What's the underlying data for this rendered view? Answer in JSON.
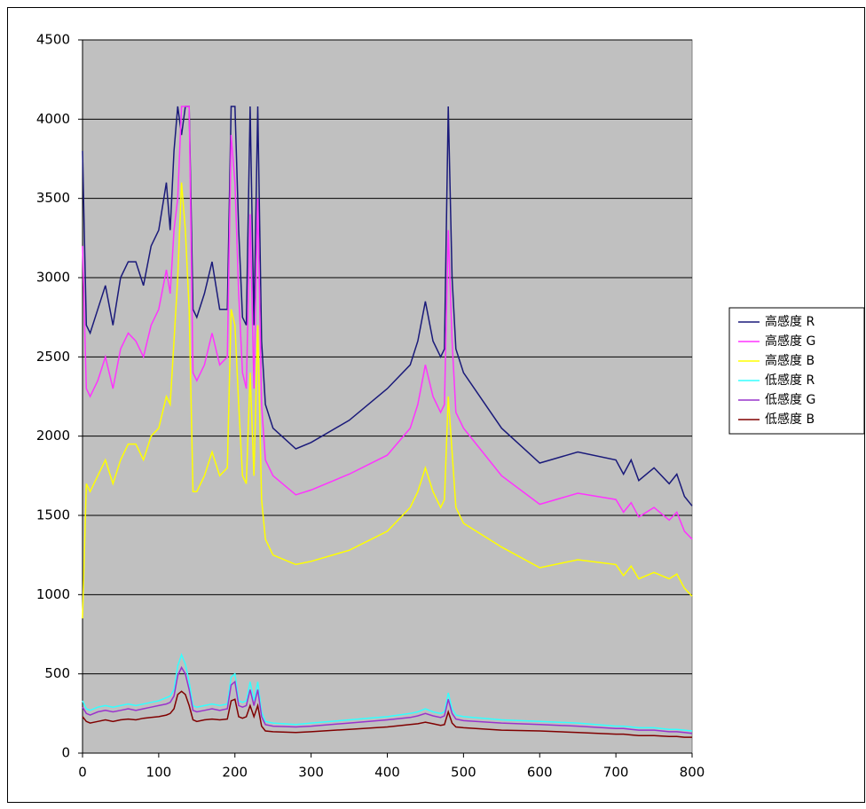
{
  "chart_data": {
    "type": "line",
    "x": [
      0,
      5,
      10,
      20,
      30,
      40,
      50,
      60,
      70,
      80,
      90,
      100,
      110,
      115,
      120,
      125,
      130,
      135,
      140,
      145,
      150,
      160,
      170,
      180,
      190,
      195,
      200,
      205,
      210,
      215,
      220,
      225,
      230,
      235,
      240,
      250,
      280,
      300,
      350,
      400,
      430,
      440,
      450,
      460,
      470,
      475,
      480,
      485,
      490,
      500,
      550,
      600,
      650,
      700,
      710,
      720,
      730,
      750,
      770,
      780,
      790,
      800
    ],
    "series": [
      {
        "name": "高感度 R",
        "color": "#1a1a7a",
        "values": [
          3800,
          2700,
          2650,
          2800,
          2950,
          2700,
          3000,
          3100,
          3100,
          2950,
          3200,
          3300,
          3600,
          3300,
          3800,
          4080,
          3900,
          4080,
          4080,
          2800,
          2750,
          2900,
          3100,
          2800,
          2800,
          4080,
          4080,
          3300,
          2750,
          2700,
          4080,
          2700,
          4080,
          2600,
          2200,
          2050,
          1920,
          1960,
          2100,
          2300,
          2450,
          2600,
          2850,
          2600,
          2500,
          2550,
          4080,
          3000,
          2550,
          2400,
          2050,
          1830,
          1900,
          1850,
          1760,
          1850,
          1720,
          1800,
          1700,
          1760,
          1620,
          1560
        ]
      },
      {
        "name": "高感度 G",
        "color": "#ff33ff",
        "values": [
          3200,
          2300,
          2250,
          2350,
          2500,
          2300,
          2550,
          2650,
          2600,
          2500,
          2700,
          2800,
          3050,
          2900,
          3300,
          3500,
          4080,
          4080,
          4080,
          2400,
          2350,
          2450,
          2650,
          2450,
          2500,
          3900,
          3600,
          2900,
          2400,
          2300,
          3400,
          2300,
          3500,
          2200,
          1850,
          1750,
          1630,
          1660,
          1760,
          1880,
          2050,
          2200,
          2450,
          2250,
          2150,
          2200,
          3300,
          2600,
          2150,
          2050,
          1750,
          1570,
          1640,
          1600,
          1520,
          1580,
          1490,
          1550,
          1470,
          1520,
          1400,
          1350
        ]
      },
      {
        "name": "高感度 B",
        "color": "#ffff00",
        "values": [
          850,
          1700,
          1650,
          1750,
          1850,
          1700,
          1850,
          1950,
          1950,
          1850,
          2000,
          2050,
          2250,
          2200,
          2600,
          3000,
          3600,
          3300,
          2800,
          1650,
          1650,
          1750,
          1900,
          1750,
          1800,
          2800,
          2700,
          2200,
          1750,
          1700,
          2400,
          1750,
          2700,
          1600,
          1350,
          1250,
          1190,
          1210,
          1280,
          1400,
          1550,
          1650,
          1800,
          1650,
          1550,
          1600,
          2250,
          1900,
          1550,
          1450,
          1300,
          1170,
          1220,
          1190,
          1120,
          1180,
          1100,
          1140,
          1100,
          1130,
          1040,
          990
        ]
      },
      {
        "name": "低感度 R",
        "color": "#33ffff",
        "values": [
          330,
          280,
          270,
          290,
          300,
          290,
          300,
          310,
          300,
          310,
          320,
          330,
          350,
          360,
          400,
          550,
          620,
          560,
          450,
          300,
          290,
          300,
          310,
          300,
          310,
          480,
          500,
          330,
          320,
          330,
          450,
          330,
          450,
          260,
          200,
          190,
          180,
          190,
          210,
          230,
          250,
          260,
          280,
          260,
          250,
          260,
          380,
          280,
          240,
          230,
          210,
          200,
          190,
          170,
          170,
          165,
          160,
          160,
          150,
          150,
          145,
          140
        ]
      },
      {
        "name": "低感度 G",
        "color": "#9933cc",
        "values": [
          290,
          250,
          240,
          260,
          270,
          260,
          270,
          280,
          270,
          280,
          290,
          300,
          310,
          320,
          360,
          490,
          540,
          500,
          400,
          270,
          260,
          270,
          280,
          270,
          280,
          430,
          450,
          300,
          290,
          300,
          400,
          300,
          400,
          230,
          180,
          170,
          165,
          170,
          190,
          210,
          225,
          235,
          250,
          235,
          225,
          235,
          340,
          250,
          215,
          205,
          190,
          180,
          170,
          155,
          155,
          150,
          145,
          145,
          135,
          135,
          130,
          125
        ]
      },
      {
        "name": "低感度 B",
        "color": "#800000",
        "values": [
          230,
          200,
          190,
          200,
          210,
          200,
          210,
          215,
          210,
          220,
          225,
          230,
          240,
          250,
          280,
          370,
          390,
          370,
          300,
          210,
          200,
          210,
          215,
          210,
          215,
          330,
          340,
          230,
          220,
          230,
          300,
          230,
          300,
          170,
          140,
          135,
          130,
          135,
          150,
          165,
          180,
          185,
          195,
          185,
          175,
          180,
          260,
          190,
          165,
          160,
          145,
          140,
          130,
          120,
          120,
          115,
          110,
          110,
          105,
          105,
          100,
          100
        ]
      }
    ],
    "xlim": [
      0,
      800
    ],
    "xticks": [
      0,
      100,
      200,
      300,
      400,
      500,
      600,
      700,
      800
    ],
    "ylim": [
      0,
      4500
    ],
    "yticks": [
      0,
      500,
      1000,
      1500,
      2000,
      2500,
      3000,
      3500,
      4000,
      4500
    ],
    "grid": true,
    "legend": "right",
    "plot_background": "#c0c0c0"
  }
}
